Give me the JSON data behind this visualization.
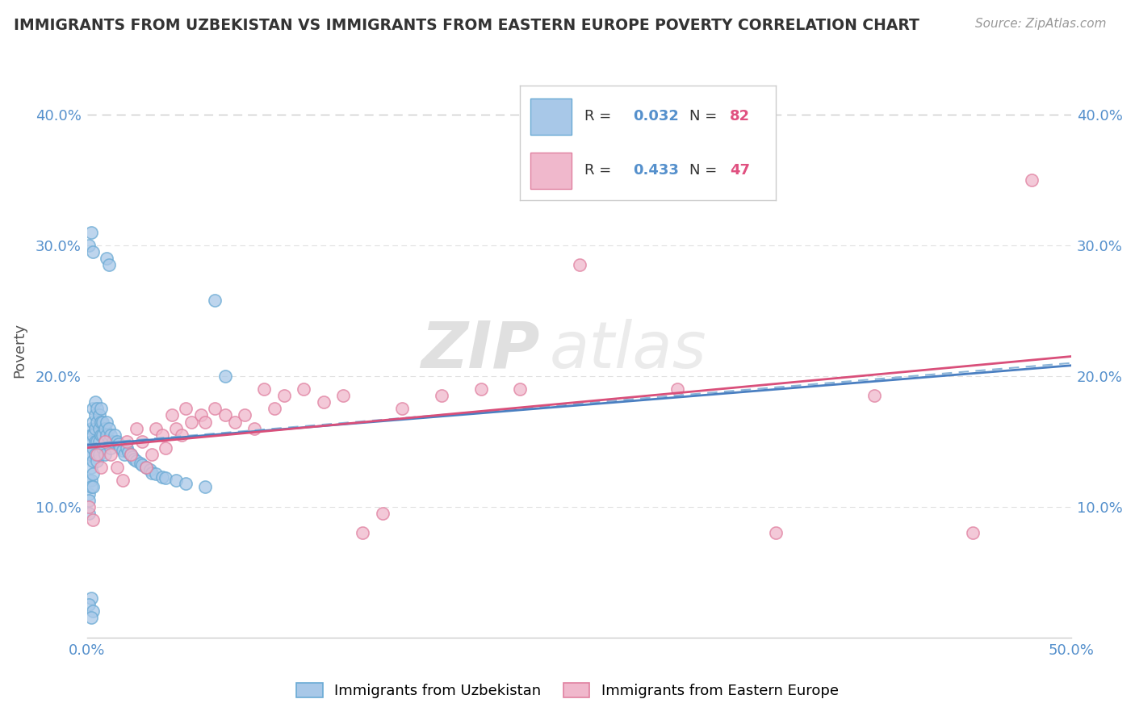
{
  "title": "IMMIGRANTS FROM UZBEKISTAN VS IMMIGRANTS FROM EASTERN EUROPE POVERTY CORRELATION CHART",
  "source": "Source: ZipAtlas.com",
  "ylabel": "Poverty",
  "xlim": [
    0.0,
    0.5
  ],
  "ylim": [
    0.0,
    0.44
  ],
  "xticks": [
    0.0,
    0.1,
    0.2,
    0.3,
    0.4,
    0.5
  ],
  "yticks": [
    0.0,
    0.1,
    0.2,
    0.3,
    0.4
  ],
  "watermark_zip": "ZIP",
  "watermark_atlas": "atlas",
  "blue_name": "Immigrants from Uzbekistan",
  "pink_name": "Immigrants from Eastern Europe",
  "blue_R": "0.032",
  "blue_N": "82",
  "pink_R": "0.433",
  "pink_N": "47",
  "blue_color": "#a8c8e8",
  "blue_edge": "#6aaad4",
  "blue_trend": "#4a7fc1",
  "pink_color": "#f0b8cc",
  "pink_edge": "#e080a0",
  "pink_trend": "#d94f7a",
  "dashed_color": "#8ab4d8",
  "grid_color": "#e0e0e0",
  "background": "#ffffff",
  "blue_x": [
    0.001,
    0.001,
    0.001,
    0.001,
    0.001,
    0.002,
    0.002,
    0.002,
    0.002,
    0.002,
    0.002,
    0.002,
    0.003,
    0.003,
    0.003,
    0.003,
    0.003,
    0.003,
    0.003,
    0.004,
    0.004,
    0.004,
    0.004,
    0.004,
    0.005,
    0.005,
    0.005,
    0.005,
    0.006,
    0.006,
    0.006,
    0.006,
    0.007,
    0.007,
    0.007,
    0.008,
    0.008,
    0.008,
    0.009,
    0.009,
    0.009,
    0.01,
    0.01,
    0.011,
    0.011,
    0.012,
    0.012,
    0.013,
    0.014,
    0.015,
    0.016,
    0.017,
    0.018,
    0.019,
    0.02,
    0.021,
    0.022,
    0.023,
    0.024,
    0.025,
    0.027,
    0.028,
    0.03,
    0.032,
    0.033,
    0.035,
    0.038,
    0.04,
    0.045,
    0.05,
    0.06,
    0.065,
    0.07,
    0.01,
    0.011,
    0.001,
    0.002,
    0.003,
    0.002,
    0.001,
    0.003,
    0.002
  ],
  "blue_y": [
    0.14,
    0.12,
    0.11,
    0.105,
    0.095,
    0.16,
    0.155,
    0.15,
    0.14,
    0.13,
    0.12,
    0.115,
    0.175,
    0.165,
    0.155,
    0.145,
    0.135,
    0.125,
    0.115,
    0.18,
    0.17,
    0.16,
    0.15,
    0.14,
    0.175,
    0.165,
    0.15,
    0.135,
    0.17,
    0.16,
    0.15,
    0.14,
    0.175,
    0.165,
    0.155,
    0.165,
    0.155,
    0.145,
    0.16,
    0.15,
    0.14,
    0.165,
    0.155,
    0.16,
    0.15,
    0.155,
    0.145,
    0.15,
    0.155,
    0.15,
    0.148,
    0.145,
    0.143,
    0.14,
    0.145,
    0.142,
    0.14,
    0.138,
    0.136,
    0.135,
    0.133,
    0.132,
    0.13,
    0.128,
    0.126,
    0.125,
    0.123,
    0.122,
    0.12,
    0.118,
    0.115,
    0.258,
    0.2,
    0.29,
    0.285,
    0.3,
    0.31,
    0.295,
    0.03,
    0.025,
    0.02,
    0.015
  ],
  "pink_x": [
    0.001,
    0.003,
    0.005,
    0.007,
    0.009,
    0.012,
    0.015,
    0.018,
    0.02,
    0.022,
    0.025,
    0.028,
    0.03,
    0.033,
    0.035,
    0.038,
    0.04,
    0.043,
    0.045,
    0.048,
    0.05,
    0.053,
    0.058,
    0.06,
    0.065,
    0.07,
    0.075,
    0.08,
    0.085,
    0.09,
    0.095,
    0.1,
    0.11,
    0.12,
    0.13,
    0.14,
    0.15,
    0.16,
    0.18,
    0.2,
    0.22,
    0.25,
    0.3,
    0.35,
    0.4,
    0.45,
    0.48
  ],
  "pink_y": [
    0.1,
    0.09,
    0.14,
    0.13,
    0.15,
    0.14,
    0.13,
    0.12,
    0.15,
    0.14,
    0.16,
    0.15,
    0.13,
    0.14,
    0.16,
    0.155,
    0.145,
    0.17,
    0.16,
    0.155,
    0.175,
    0.165,
    0.17,
    0.165,
    0.175,
    0.17,
    0.165,
    0.17,
    0.16,
    0.19,
    0.175,
    0.185,
    0.19,
    0.18,
    0.185,
    0.08,
    0.095,
    0.175,
    0.185,
    0.19,
    0.19,
    0.285,
    0.19,
    0.08,
    0.185,
    0.08,
    0.35
  ]
}
